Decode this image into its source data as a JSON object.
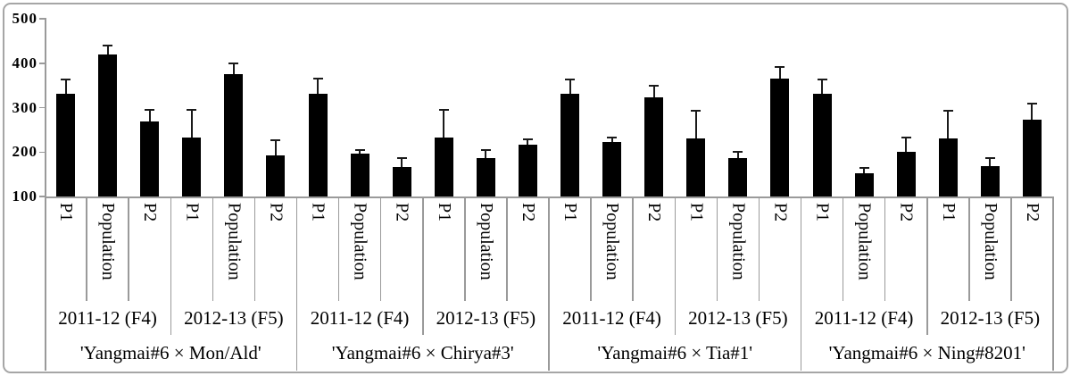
{
  "figure": {
    "background": "#ffffff",
    "border_color": "#a6a6a6"
  },
  "chart_data": {
    "type": "bar",
    "title": "",
    "xlabel": "",
    "ylabel": "",
    "ylim": [
      100,
      500
    ],
    "yticks": [
      "500",
      "400",
      "300",
      "200",
      "100"
    ],
    "ytick_values": [
      500,
      400,
      300,
      200,
      100
    ],
    "grid": false,
    "legend": false,
    "bar_color": "#000000",
    "axis_color": "#9a9a9a",
    "error_bars": "upper whiskers with caps",
    "series_labels": [
      "P1",
      "Population",
      "P2"
    ],
    "groups": [
      {
        "label": "'Yangmai#6 × Mon/Ald'",
        "years": [
          {
            "label": "2011-12 (F4)",
            "bars": [
              {
                "label": "P1",
                "value": 331,
                "error": 32
              },
              {
                "label": "Population",
                "value": 420,
                "error": 19
              },
              {
                "label": "P2",
                "value": 268,
                "error": 26
              }
            ]
          },
          {
            "label": "2012-13 (F5)",
            "bars": [
              {
                "label": "P1",
                "value": 232,
                "error": 62
              },
              {
                "label": "Population",
                "value": 375,
                "error": 25
              },
              {
                "label": "P2",
                "value": 192,
                "error": 34
              }
            ]
          }
        ]
      },
      {
        "label": "'Yangmai#6 × Chirya#3'",
        "years": [
          {
            "label": "2011-12 (F4)",
            "bars": [
              {
                "label": "P1",
                "value": 332,
                "error": 33
              },
              {
                "label": "Population",
                "value": 196,
                "error": 9
              },
              {
                "label": "P2",
                "value": 166,
                "error": 20
              }
            ]
          },
          {
            "label": "2012-13 (F5)",
            "bars": [
              {
                "label": "P1",
                "value": 232,
                "error": 62
              },
              {
                "label": "Population",
                "value": 187,
                "error": 17
              },
              {
                "label": "P2",
                "value": 217,
                "error": 12
              }
            ]
          }
        ]
      },
      {
        "label": "'Yangmai#6 × Tia#1'",
        "years": [
          {
            "label": "2011-12 (F4)",
            "bars": [
              {
                "label": "P1",
                "value": 332,
                "error": 32
              },
              {
                "label": "Population",
                "value": 223,
                "error": 10
              },
              {
                "label": "P2",
                "value": 324,
                "error": 25
              }
            ]
          },
          {
            "label": "2012-13 (F5)",
            "bars": [
              {
                "label": "P1",
                "value": 231,
                "error": 62
              },
              {
                "label": "Population",
                "value": 186,
                "error": 14
              },
              {
                "label": "P2",
                "value": 365,
                "error": 26
              }
            ]
          }
        ]
      },
      {
        "label": "'Yangmai#6 × Ning#8201'",
        "years": [
          {
            "label": "2011-12 (F4)",
            "bars": [
              {
                "label": "P1",
                "value": 331,
                "error": 33
              },
              {
                "label": "Population",
                "value": 152,
                "error": 13
              },
              {
                "label": "P2",
                "value": 200,
                "error": 32
              }
            ]
          },
          {
            "label": "2012-13 (F5)",
            "bars": [
              {
                "label": "P1",
                "value": 231,
                "error": 62
              },
              {
                "label": "Population",
                "value": 168,
                "error": 18
              },
              {
                "label": "P2",
                "value": 273,
                "error": 37
              }
            ]
          }
        ]
      }
    ]
  }
}
